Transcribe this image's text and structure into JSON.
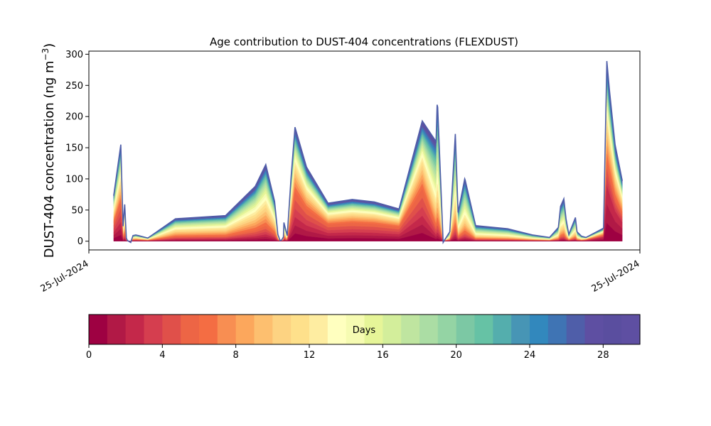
{
  "chart_data": {
    "type": "area",
    "title": "Age contribution to DUST-404 concentrations (FLEXDUST)",
    "ylabel_main": "DUST-404 concentration (ng m",
    "ylabel_sup": "−3",
    "ylabel_close": ")",
    "xlabel": "",
    "ylim": [
      -14,
      305
    ],
    "yticks": [
      0,
      50,
      100,
      150,
      200,
      250,
      300
    ],
    "xticks": [
      "25-Jul-2024",
      "25-Jul-2024"
    ],
    "grid": false,
    "x_fraction_note": "x positions as fraction of time span",
    "x": [
      0.045,
      0.058,
      0.062,
      0.065,
      0.068,
      0.07,
      0.076,
      0.08,
      0.085,
      0.09,
      0.107,
      0.157,
      0.248,
      0.302,
      0.321,
      0.337,
      0.343,
      0.347,
      0.35,
      0.353,
      0.354,
      0.36,
      0.367,
      0.374,
      0.395,
      0.434,
      0.478,
      0.518,
      0.562,
      0.563,
      0.605,
      0.63,
      0.632,
      0.633,
      0.643,
      0.652,
      0.655,
      0.665,
      0.67,
      0.682,
      0.683,
      0.702,
      0.76,
      0.805,
      0.836,
      0.852,
      0.856,
      0.862,
      0.866,
      0.871,
      0.883,
      0.886,
      0.894,
      0.902,
      0.934,
      0.94,
      0.945,
      0.955,
      0.968
    ],
    "total": [
      73,
      155,
      24,
      59,
      5,
      1,
      -2,
      9,
      10,
      9,
      5,
      36,
      41,
      88,
      123,
      64,
      11,
      1,
      2,
      7,
      30,
      9,
      103,
      183,
      119,
      61,
      67,
      63,
      52,
      52,
      193,
      160,
      219,
      215,
      -2,
      11,
      15,
      172,
      46,
      100,
      98,
      25,
      20,
      10,
      6,
      22,
      56,
      68,
      36,
      11,
      38,
      15,
      8,
      6,
      21,
      289,
      240,
      155,
      97
    ],
    "total_days": 30,
    "colorbar": {
      "label": "Days",
      "ticks": [
        0,
        4,
        8,
        12,
        16,
        20,
        24,
        28
      ],
      "min": 0,
      "max": 30,
      "colors": [
        "#9e0142",
        "#b11946",
        "#c4284a",
        "#d53e4f",
        "#e0504a",
        "#ed6545",
        "#f46d43",
        "#f88e52",
        "#fca75c",
        "#fdbf6f",
        "#fdd382",
        "#fee08b",
        "#feeda1",
        "#ffffbf",
        "#f6fbb2",
        "#e6f598",
        "#d3ee9b",
        "#bfe5a0",
        "#abdda4",
        "#94d4a4",
        "#7cc8a4",
        "#66c2a5",
        "#54aead",
        "#4795b5",
        "#3288bd",
        "#3f74b4",
        "#4f5ea9",
        "#5e4fa2",
        "#5a4e9f",
        "#5e4fa2"
      ]
    }
  }
}
